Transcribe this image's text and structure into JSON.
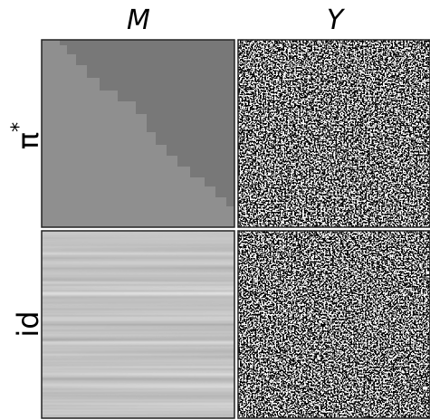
{
  "columns": [
    "M",
    "Y"
  ],
  "rows": [
    {
      "label": "π",
      "sup": "*"
    },
    {
      "label": "id"
    }
  ]
}
